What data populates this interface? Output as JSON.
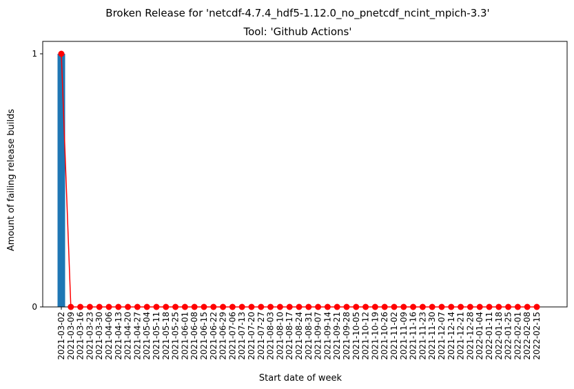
{
  "chart_data": {
    "type": "bar",
    "title": "Broken Release for 'netcdf-4.7.4_hdf5-1.12.0_no_pnetcdf_ncint_mpich-3.3'",
    "subtitle": "Tool: 'Github Actions'",
    "xlabel": "Start date of week",
    "ylabel": "Amount of failing release builds",
    "categories": [
      "2021-03-02",
      "2021-03-09",
      "2021-03-16",
      "2021-03-23",
      "2021-03-30",
      "2021-04-06",
      "2021-04-13",
      "2021-04-20",
      "2021-04-27",
      "2021-05-04",
      "2021-05-11",
      "2021-05-18",
      "2021-05-25",
      "2021-06-01",
      "2021-06-08",
      "2021-06-15",
      "2021-06-22",
      "2021-06-29",
      "2021-07-06",
      "2021-07-13",
      "2021-07-20",
      "2021-07-27",
      "2021-08-03",
      "2021-08-10",
      "2021-08-17",
      "2021-08-24",
      "2021-08-31",
      "2021-09-07",
      "2021-09-14",
      "2021-09-21",
      "2021-09-28",
      "2021-10-05",
      "2021-10-12",
      "2021-10-19",
      "2021-10-26",
      "2021-11-02",
      "2021-11-09",
      "2021-11-16",
      "2021-11-23",
      "2021-11-30",
      "2021-12-07",
      "2021-12-14",
      "2021-12-21",
      "2021-12-28",
      "2022-01-04",
      "2022-01-11",
      "2022-01-18",
      "2022-01-25",
      "2022-02-01",
      "2022-02-08",
      "2022-02-15"
    ],
    "values": [
      1,
      0,
      0,
      0,
      0,
      0,
      0,
      0,
      0,
      0,
      0,
      0,
      0,
      0,
      0,
      0,
      0,
      0,
      0,
      0,
      0,
      0,
      0,
      0,
      0,
      0,
      0,
      0,
      0,
      0,
      0,
      0,
      0,
      0,
      0,
      0,
      0,
      0,
      0,
      0,
      0,
      0,
      0,
      0,
      0,
      0,
      0,
      0,
      0,
      0,
      0
    ],
    "yticks": [
      0,
      1
    ],
    "ylim": [
      0,
      1
    ],
    "bar_color": "#1f77b4",
    "line_color": "#ff0000",
    "grid": false
  }
}
